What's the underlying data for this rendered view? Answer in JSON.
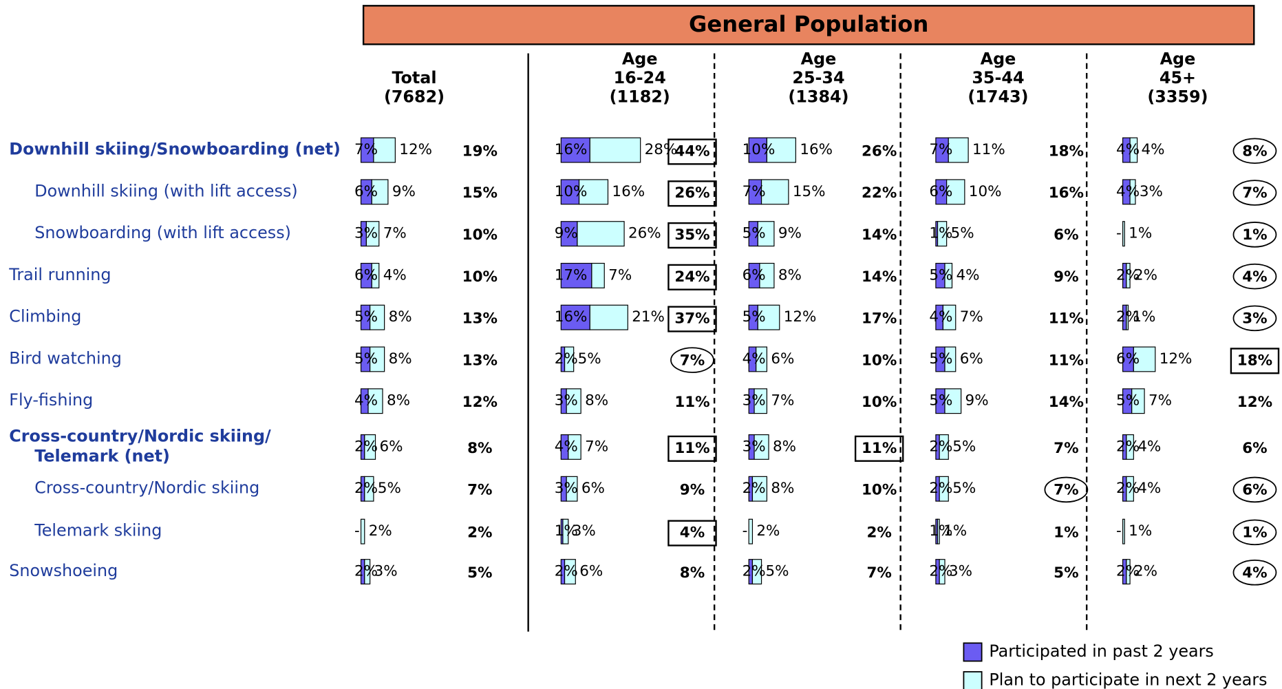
{
  "header": {
    "title": "General Population"
  },
  "legend": {
    "participated": "Participated in past 2 years",
    "plan": "Plan to participate in next 2 years"
  },
  "colors": {
    "participated": "#6b5cf2",
    "plan": "#ccffff"
  },
  "groups": [
    {
      "lines": [
        "Total",
        "(7682)"
      ]
    },
    {
      "lines": [
        "Age",
        "16-24",
        "(1182)"
      ]
    },
    {
      "lines": [
        "Age",
        "25-34",
        "(1384)"
      ]
    },
    {
      "lines": [
        "Age",
        "35-44",
        "(1743)"
      ]
    },
    {
      "lines": [
        "Age",
        "45+",
        "(3359)"
      ]
    }
  ],
  "rows": [
    {
      "label": [
        "Downhill skiing/Snowboarding (net)"
      ],
      "bold": true,
      "indent": false,
      "cells": [
        {
          "p": 7,
          "q": 12,
          "n": 19,
          "pl": "7%",
          "ql": "12%",
          "nl": "19%"
        },
        {
          "p": 16,
          "q": 28,
          "n": 44,
          "pl": "16%",
          "ql": "28%",
          "nl": "44%",
          "flag": "box"
        },
        {
          "p": 10,
          "q": 16,
          "n": 26,
          "pl": "10%",
          "ql": "16%",
          "nl": "26%"
        },
        {
          "p": 7,
          "q": 11,
          "n": 18,
          "pl": "7%",
          "ql": "11%",
          "nl": "18%"
        },
        {
          "p": 4,
          "q": 4,
          "n": 8,
          "pl": "4%",
          "ql": "4%",
          "nl": "8%",
          "flag": "ellipse"
        }
      ]
    },
    {
      "label": [
        "Downhill skiing  (with lift access)"
      ],
      "bold": false,
      "indent": true,
      "cells": [
        {
          "p": 6,
          "q": 9,
          "n": 15,
          "pl": "6%",
          "ql": "9%",
          "nl": "15%"
        },
        {
          "p": 10,
          "q": 16,
          "n": 26,
          "pl": "10%",
          "ql": "16%",
          "nl": "26%",
          "flag": "box"
        },
        {
          "p": 7,
          "q": 15,
          "n": 22,
          "pl": "7%",
          "ql": "15%",
          "nl": "22%"
        },
        {
          "p": 6,
          "q": 10,
          "n": 16,
          "pl": "6%",
          "ql": "10%",
          "nl": "16%"
        },
        {
          "p": 4,
          "q": 3,
          "n": 7,
          "pl": "4%",
          "ql": "3%",
          "nl": "7%",
          "flag": "ellipse"
        }
      ]
    },
    {
      "label": [
        "Snowboarding  (with lift access)"
      ],
      "bold": false,
      "indent": true,
      "cells": [
        {
          "p": 3,
          "q": 7,
          "n": 10,
          "pl": "3%",
          "ql": "7%",
          "nl": "10%"
        },
        {
          "p": 9,
          "q": 26,
          "n": 35,
          "pl": "9%",
          "ql": "26%",
          "nl": "35%",
          "flag": "box"
        },
        {
          "p": 5,
          "q": 9,
          "n": 14,
          "pl": "5%",
          "ql": "9%",
          "nl": "14%"
        },
        {
          "p": 1,
          "q": 5,
          "n": 6,
          "pl": "1%",
          "ql": "5%",
          "nl": "6%"
        },
        {
          "p": null,
          "q": 1,
          "n": 1,
          "pl": "-",
          "ql": "1%",
          "nl": "1%",
          "flag": "ellipse"
        }
      ]
    },
    {
      "label": [
        "Trail running"
      ],
      "bold": false,
      "indent": false,
      "cells": [
        {
          "p": 6,
          "q": 4,
          "n": 10,
          "pl": "6%",
          "ql": "4%",
          "nl": "10%"
        },
        {
          "p": 17,
          "q": 7,
          "n": 24,
          "pl": "17%",
          "ql": "7%",
          "nl": "24%",
          "flag": "box"
        },
        {
          "p": 6,
          "q": 8,
          "n": 14,
          "pl": "6%",
          "ql": "8%",
          "nl": "14%"
        },
        {
          "p": 5,
          "q": 4,
          "n": 9,
          "pl": "5%",
          "ql": "4%",
          "nl": "9%"
        },
        {
          "p": 2,
          "q": 2,
          "n": 4,
          "pl": "2%",
          "ql": "2%",
          "nl": "4%",
          "flag": "ellipse"
        }
      ]
    },
    {
      "label": [
        "Climbing"
      ],
      "bold": false,
      "indent": false,
      "cells": [
        {
          "p": 5,
          "q": 8,
          "n": 13,
          "pl": "5%",
          "ql": "8%",
          "nl": "13%"
        },
        {
          "p": 16,
          "q": 21,
          "n": 37,
          "pl": "16%",
          "ql": "21%",
          "nl": "37%",
          "flag": "box"
        },
        {
          "p": 5,
          "q": 12,
          "n": 17,
          "pl": "5%",
          "ql": "12%",
          "nl": "17%"
        },
        {
          "p": 4,
          "q": 7,
          "n": 11,
          "pl": "4%",
          "ql": "7%",
          "nl": "11%"
        },
        {
          "p": 2,
          "q": 1,
          "n": 3,
          "pl": "2%",
          "ql": "1%",
          "nl": "3%",
          "flag": "ellipse"
        }
      ]
    },
    {
      "label": [
        "Bird watching"
      ],
      "bold": false,
      "indent": false,
      "cells": [
        {
          "p": 5,
          "q": 8,
          "n": 13,
          "pl": "5%",
          "ql": "8%",
          "nl": "13%"
        },
        {
          "p": 2,
          "q": 5,
          "n": 7,
          "pl": "2%",
          "ql": "5%",
          "nl": "7%",
          "flag": "ellipse"
        },
        {
          "p": 4,
          "q": 6,
          "n": 10,
          "pl": "4%",
          "ql": "6%",
          "nl": "10%"
        },
        {
          "p": 5,
          "q": 6,
          "n": 11,
          "pl": "5%",
          "ql": "6%",
          "nl": "11%"
        },
        {
          "p": 6,
          "q": 12,
          "n": 18,
          "pl": "6%",
          "ql": "12%",
          "nl": "18%",
          "flag": "box"
        }
      ]
    },
    {
      "label": [
        "Fly-fishing"
      ],
      "bold": false,
      "indent": false,
      "cells": [
        {
          "p": 4,
          "q": 8,
          "n": 12,
          "pl": "4%",
          "ql": "8%",
          "nl": "12%"
        },
        {
          "p": 3,
          "q": 8,
          "n": 11,
          "pl": "3%",
          "ql": "8%",
          "nl": "11%"
        },
        {
          "p": 3,
          "q": 7,
          "n": 10,
          "pl": "3%",
          "ql": "7%",
          "nl": "10%"
        },
        {
          "p": 5,
          "q": 9,
          "n": 14,
          "pl": "5%",
          "ql": "9%",
          "nl": "14%"
        },
        {
          "p": 5,
          "q": 7,
          "n": 12,
          "pl": "5%",
          "ql": "7%",
          "nl": "12%"
        }
      ]
    },
    {
      "label": [
        "Cross-country/Nordic skiing/",
        "Telemark (net)"
      ],
      "bold": true,
      "indent": false,
      "cells": [
        {
          "p": 2,
          "q": 6,
          "n": 8,
          "pl": "2%",
          "ql": "6%",
          "nl": "8%"
        },
        {
          "p": 4,
          "q": 7,
          "n": 11,
          "pl": "4%",
          "ql": "7%",
          "nl": "11%",
          "flag": "box"
        },
        {
          "p": 3,
          "q": 8,
          "n": 11,
          "pl": "3%",
          "ql": "8%",
          "nl": "11%",
          "flag": "box"
        },
        {
          "p": 2,
          "q": 5,
          "n": 7,
          "pl": "2%",
          "ql": "5%",
          "nl": "7%"
        },
        {
          "p": 2,
          "q": 4,
          "n": 6,
          "pl": "2%",
          "ql": "4%",
          "nl": "6%"
        }
      ]
    },
    {
      "label": [
        "Cross-country/Nordic skiing"
      ],
      "bold": false,
      "indent": true,
      "cells": [
        {
          "p": 2,
          "q": 5,
          "n": 7,
          "pl": "2%",
          "ql": "5%",
          "nl": "7%"
        },
        {
          "p": 3,
          "q": 6,
          "n": 9,
          "pl": "3%",
          "ql": "6%",
          "nl": "9%"
        },
        {
          "p": 2,
          "q": 8,
          "n": 10,
          "pl": "2%",
          "ql": "8%",
          "nl": "10%"
        },
        {
          "p": 2,
          "q": 5,
          "n": 7,
          "pl": "2%",
          "ql": "5%",
          "nl": "7%",
          "flag": "ellipse"
        },
        {
          "p": 2,
          "q": 4,
          "n": 6,
          "pl": "2%",
          "ql": "4%",
          "nl": "6%",
          "flag": "ellipse"
        }
      ]
    },
    {
      "label": [
        "Telemark skiing"
      ],
      "bold": false,
      "indent": true,
      "cells": [
        {
          "p": null,
          "q": 2,
          "n": 2,
          "pl": "-",
          "ql": "2%",
          "nl": "2%"
        },
        {
          "p": 1,
          "q": 3,
          "n": 4,
          "pl": "1%",
          "ql": "3%",
          "nl": "4%",
          "flag": "box"
        },
        {
          "p": null,
          "q": 2,
          "n": 2,
          "pl": "-",
          "ql": "2%",
          "nl": "2%"
        },
        {
          "p": 1,
          "q": 1,
          "n": 1,
          "pl": "1%",
          "ql": "1%",
          "nl": "1%"
        },
        {
          "p": null,
          "q": 1,
          "n": 1,
          "pl": "-",
          "ql": "1%",
          "nl": "1%",
          "flag": "ellipse"
        }
      ]
    },
    {
      "label": [
        "Snowshoeing"
      ],
      "bold": false,
      "indent": false,
      "cells": [
        {
          "p": 2,
          "q": 3,
          "n": 5,
          "pl": "2%",
          "ql": "3%",
          "nl": "5%"
        },
        {
          "p": 2,
          "q": 6,
          "n": 8,
          "pl": "2%",
          "ql": "6%",
          "nl": "8%"
        },
        {
          "p": 2,
          "q": 5,
          "n": 7,
          "pl": "2%",
          "ql": "5%",
          "nl": "7%"
        },
        {
          "p": 2,
          "q": 3,
          "n": 5,
          "pl": "2%",
          "ql": "3%",
          "nl": "5%"
        },
        {
          "p": 2,
          "q": 2,
          "n": 4,
          "pl": "2%",
          "ql": "2%",
          "nl": "4%",
          "flag": "ellipse"
        }
      ]
    }
  ]
}
